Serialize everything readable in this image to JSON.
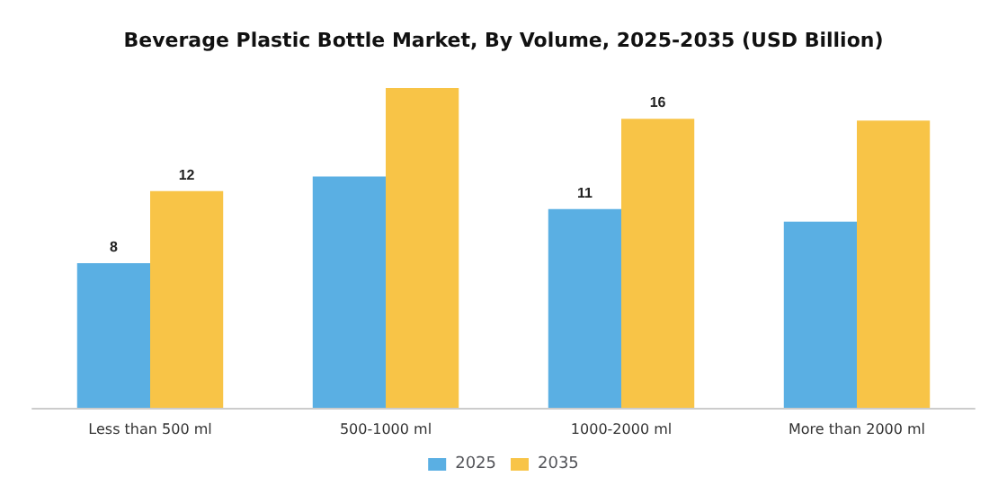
{
  "chart_data": {
    "type": "bar",
    "title": "Beverage Plastic Bottle Market, By Volume, 2025-2035 (USD Billion)",
    "categories": [
      "Less than 500 ml",
      "500-1000 ml",
      "1000-2000 ml",
      "More than 2000 ml"
    ],
    "series": [
      {
        "name": "2025",
        "color": "#5aafe3",
        "values": [
          8,
          12.8,
          11,
          10.3
        ],
        "value_labels": [
          "8",
          null,
          "11",
          null
        ]
      },
      {
        "name": "2035",
        "color": "#f8c447",
        "values": [
          12,
          17.7,
          16,
          15.9
        ],
        "value_labels": [
          "12",
          null,
          "16",
          null
        ]
      }
    ],
    "legend": "bottom",
    "grid": false,
    "tick_labels": "x"
  }
}
